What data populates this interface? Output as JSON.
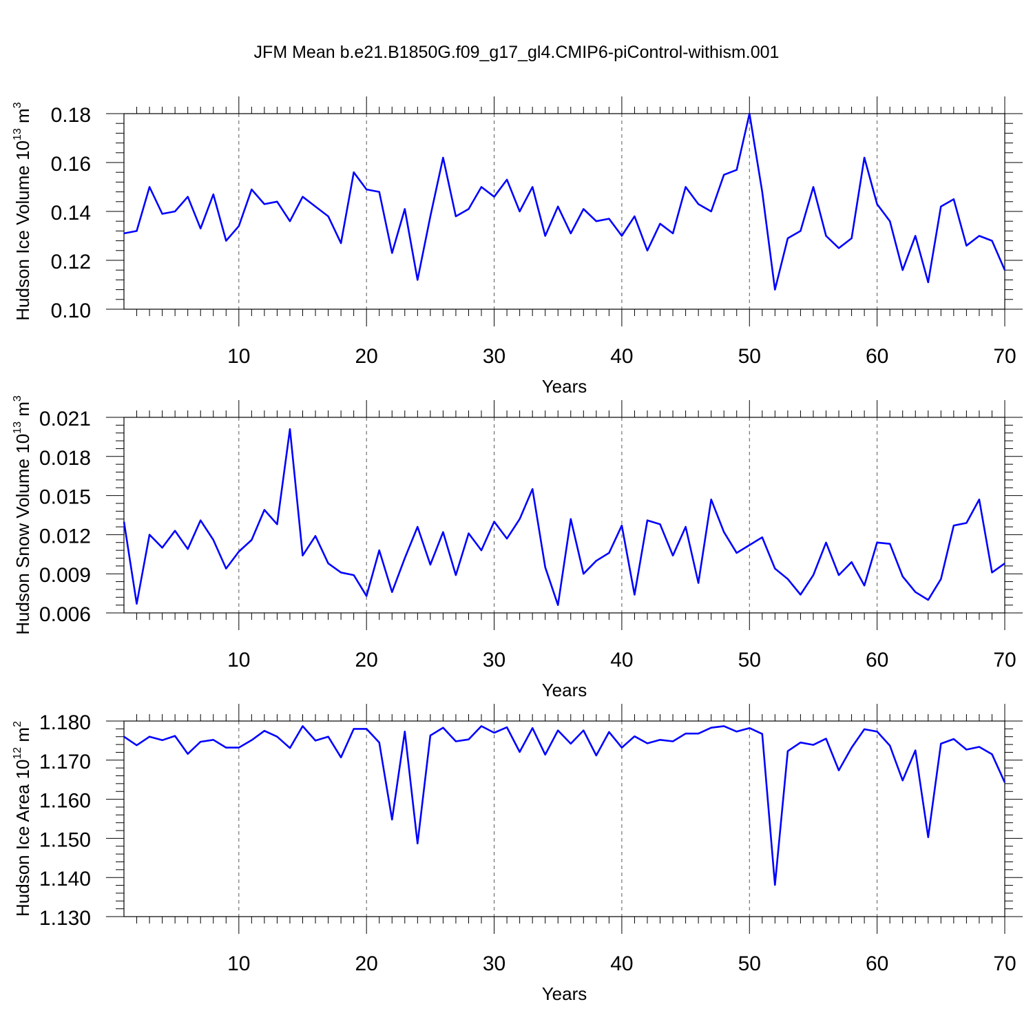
{
  "title": "JFM Mean b.e21.B1850G.f09_g17_gl4.CMIP6-piControl-withism.001",
  "chart_data": [
    {
      "type": "line",
      "ylabel": "Hudson Ice Volume 10",
      "ylabel_exp": "13",
      "ylabel_unit": " m",
      "ylabel_unit_exp": "3",
      "xlabel": "Years",
      "xlim": [
        1,
        70
      ],
      "ylim": [
        0.1,
        0.18
      ],
      "x_ticks": [
        10,
        20,
        30,
        40,
        50,
        60,
        70
      ],
      "x_tick_labels": [
        "10",
        "20",
        "30",
        "40",
        "50",
        "60",
        "70"
      ],
      "y_ticks": [
        0.1,
        0.12,
        0.14,
        0.16,
        0.18
      ],
      "y_tick_labels": [
        "0.10",
        "0.12",
        "0.14",
        "0.16",
        "0.18"
      ],
      "grid": "dashed vertical at major x ticks",
      "line_color": "#0000ff",
      "x": [
        1,
        2,
        3,
        4,
        5,
        6,
        7,
        8,
        9,
        10,
        11,
        12,
        13,
        14,
        15,
        16,
        17,
        18,
        19,
        20,
        21,
        22,
        23,
        24,
        25,
        26,
        27,
        28,
        29,
        30,
        31,
        32,
        33,
        34,
        35,
        36,
        37,
        38,
        39,
        40,
        41,
        42,
        43,
        44,
        45,
        46,
        47,
        48,
        49,
        50,
        51,
        52,
        53,
        54,
        55,
        56,
        57,
        58,
        59,
        60,
        61,
        62,
        63,
        64,
        65,
        66,
        67,
        68,
        69,
        70
      ],
      "values": [
        0.131,
        0.132,
        0.15,
        0.139,
        0.14,
        0.146,
        0.133,
        0.147,
        0.128,
        0.134,
        0.149,
        0.143,
        0.144,
        0.136,
        0.146,
        0.142,
        0.138,
        0.127,
        0.156,
        0.149,
        0.148,
        0.123,
        0.141,
        0.112,
        0.138,
        0.162,
        0.138,
        0.141,
        0.15,
        0.146,
        0.153,
        0.14,
        0.15,
        0.13,
        0.142,
        0.131,
        0.141,
        0.136,
        0.137,
        0.13,
        0.138,
        0.124,
        0.135,
        0.131,
        0.15,
        0.143,
        0.14,
        0.155,
        0.157,
        0.18,
        0.148,
        0.108,
        0.129,
        0.132,
        0.15,
        0.13,
        0.125,
        0.129,
        0.162,
        0.143,
        0.136,
        0.116,
        0.13,
        0.111,
        0.142,
        0.145,
        0.126,
        0.13,
        0.128,
        0.116
      ]
    },
    {
      "type": "line",
      "ylabel": "Hudson Snow Volume 10",
      "ylabel_exp": "13",
      "ylabel_unit": " m",
      "ylabel_unit_exp": "3",
      "xlabel": "Years",
      "xlim": [
        1,
        70
      ],
      "ylim": [
        0.006,
        0.021
      ],
      "x_ticks": [
        10,
        20,
        30,
        40,
        50,
        60,
        70
      ],
      "x_tick_labels": [
        "10",
        "20",
        "30",
        "40",
        "50",
        "60",
        "70"
      ],
      "y_ticks": [
        0.006,
        0.009,
        0.012,
        0.015,
        0.018,
        0.021
      ],
      "y_tick_labels": [
        "0.006",
        "0.009",
        "0.012",
        "0.015",
        "0.018",
        "0.021"
      ],
      "grid": "dashed vertical at major x ticks",
      "line_color": "#0000ff",
      "x": [
        1,
        2,
        3,
        4,
        5,
        6,
        7,
        8,
        9,
        10,
        11,
        12,
        13,
        14,
        15,
        16,
        17,
        18,
        19,
        20,
        21,
        22,
        23,
        24,
        25,
        26,
        27,
        28,
        29,
        30,
        31,
        32,
        33,
        34,
        35,
        36,
        37,
        38,
        39,
        40,
        41,
        42,
        43,
        44,
        45,
        46,
        47,
        48,
        49,
        50,
        51,
        52,
        53,
        54,
        55,
        56,
        57,
        58,
        59,
        60,
        61,
        62,
        63,
        64,
        65,
        66,
        67,
        68,
        69,
        70
      ],
      "values": [
        0.013,
        0.0067,
        0.012,
        0.011,
        0.0123,
        0.0109,
        0.0131,
        0.0116,
        0.0094,
        0.0107,
        0.0116,
        0.0139,
        0.0128,
        0.0201,
        0.0104,
        0.0119,
        0.0098,
        0.0091,
        0.0089,
        0.0073,
        0.0108,
        0.0076,
        0.0102,
        0.0126,
        0.0097,
        0.0122,
        0.0089,
        0.0121,
        0.0108,
        0.013,
        0.0117,
        0.0132,
        0.0155,
        0.0095,
        0.0066,
        0.0132,
        0.009,
        0.01,
        0.0106,
        0.0127,
        0.0074,
        0.0131,
        0.0128,
        0.0104,
        0.0126,
        0.0083,
        0.0147,
        0.0122,
        0.0106,
        0.0112,
        0.0118,
        0.0094,
        0.0086,
        0.0074,
        0.0089,
        0.0114,
        0.0089,
        0.0099,
        0.0081,
        0.0114,
        0.0113,
        0.0088,
        0.0076,
        0.007,
        0.0086,
        0.0127,
        0.0129,
        0.0147,
        0.0091,
        0.0098
      ]
    },
    {
      "type": "line",
      "ylabel": "Hudson Ice Area 10",
      "ylabel_exp": "12",
      "ylabel_unit": " m",
      "ylabel_unit_exp": "2",
      "xlabel": "Years",
      "xlim": [
        1,
        70
      ],
      "ylim": [
        1.13,
        1.18
      ],
      "x_ticks": [
        10,
        20,
        30,
        40,
        50,
        60,
        70
      ],
      "x_tick_labels": [
        "10",
        "20",
        "30",
        "40",
        "50",
        "60",
        "70"
      ],
      "y_ticks": [
        1.13,
        1.14,
        1.15,
        1.16,
        1.17,
        1.18
      ],
      "y_tick_labels": [
        "1.130",
        "1.140",
        "1.150",
        "1.160",
        "1.170",
        "1.180"
      ],
      "grid": "dashed vertical at major x ticks",
      "line_color": "#0000ff",
      "x": [
        1,
        2,
        3,
        4,
        5,
        6,
        7,
        8,
        9,
        10,
        11,
        12,
        13,
        14,
        15,
        16,
        17,
        18,
        19,
        20,
        21,
        22,
        23,
        24,
        25,
        26,
        27,
        28,
        29,
        30,
        31,
        32,
        33,
        34,
        35,
        36,
        37,
        38,
        39,
        40,
        41,
        42,
        43,
        44,
        45,
        46,
        47,
        48,
        49,
        50,
        51,
        52,
        53,
        54,
        55,
        56,
        57,
        58,
        59,
        60,
        61,
        62,
        63,
        64,
        65,
        66,
        67,
        68,
        69,
        70
      ],
      "values": [
        1.176,
        1.1738,
        1.176,
        1.1751,
        1.1762,
        1.1716,
        1.1747,
        1.1752,
        1.1732,
        1.1732,
        1.1751,
        1.1775,
        1.176,
        1.1731,
        1.1787,
        1.175,
        1.176,
        1.1707,
        1.178,
        1.178,
        1.1745,
        1.1548,
        1.1773,
        1.1487,
        1.1763,
        1.1783,
        1.1748,
        1.1753,
        1.1787,
        1.177,
        1.1784,
        1.1721,
        1.1782,
        1.1714,
        1.1776,
        1.1742,
        1.1776,
        1.1712,
        1.1772,
        1.1732,
        1.1761,
        1.1743,
        1.1752,
        1.1748,
        1.1768,
        1.1768,
        1.1783,
        1.1787,
        1.1773,
        1.1782,
        1.1767,
        1.1381,
        1.1723,
        1.1745,
        1.1739,
        1.1755,
        1.1674,
        1.1732,
        1.1779,
        1.1773,
        1.1737,
        1.1648,
        1.1725,
        1.1503,
        1.1742,
        1.1754,
        1.1727,
        1.1734,
        1.1715,
        1.1643
      ]
    }
  ]
}
